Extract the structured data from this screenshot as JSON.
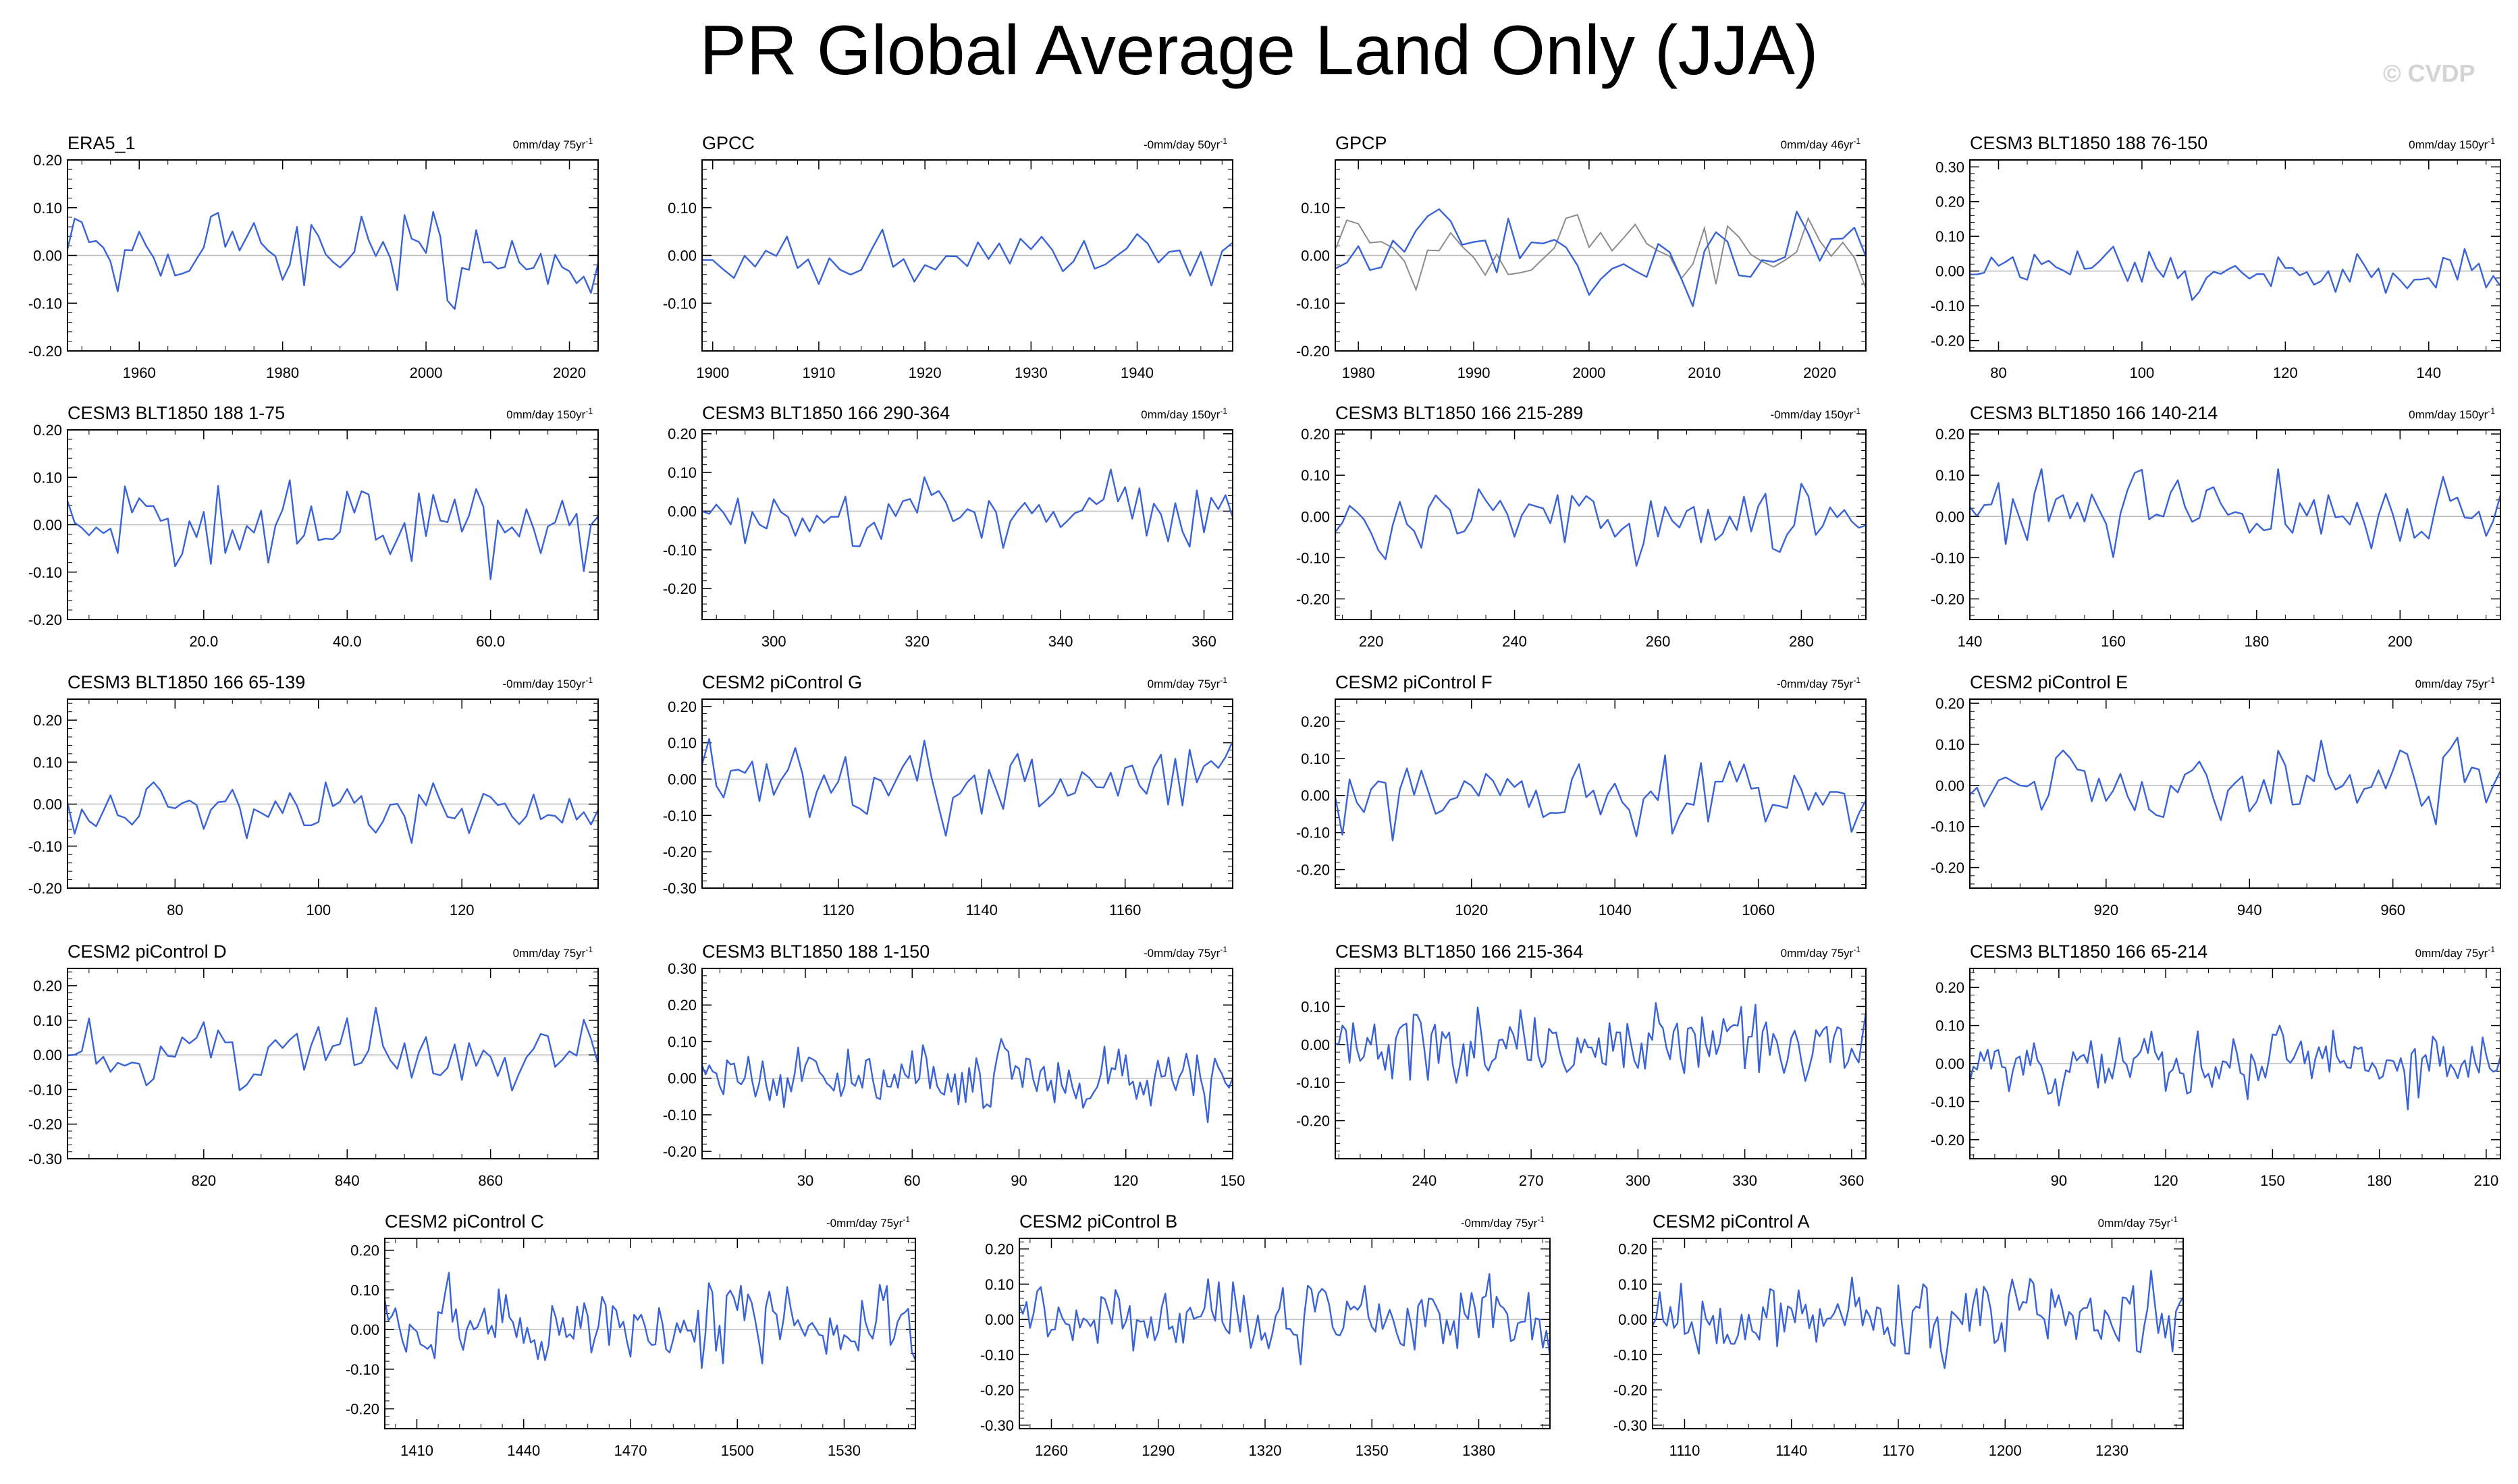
{
  "title": "PR Global Average Land Only (JJA)",
  "watermark": "© CVDP",
  "colors": {
    "series": "#3a63d6",
    "obs_overlay": "#8c8c8c",
    "zero_line": "#bdbdbd",
    "axis": "#000000"
  },
  "chart_data": [
    {
      "type": "line",
      "title": "ERA5_1",
      "trend": "0mm/day 75yr",
      "ylim": [
        -0.2,
        0.2
      ],
      "yticks": [
        -0.2,
        -0.1,
        0,
        0.1,
        0.2
      ],
      "ytick_labels": [
        "-0.20",
        "-0.10",
        "0.00",
        "0.10",
        "0.20"
      ],
      "xlim": [
        1950,
        2024
      ],
      "xticks": [
        1960,
        1980,
        2000,
        2020
      ],
      "xtick_labels": [
        "1960",
        "1980",
        "2000",
        "2020"
      ],
      "seed": 11,
      "amp": 0.075,
      "clip": 0.17
    },
    {
      "type": "line",
      "title": "GPCC",
      "trend": "-0mm/day 50yr",
      "ylim": [
        -0.2,
        0.2
      ],
      "yticks": [
        -0.1,
        0,
        0.1
      ],
      "ytick_labels": [
        "-0.10",
        "0.00",
        "0.10"
      ],
      "xlim": [
        1899,
        1949
      ],
      "xticks": [
        1900,
        1910,
        1920,
        1930,
        1940
      ],
      "xtick_labels": [
        "1900",
        "1910",
        "1920",
        "1930",
        "1940"
      ],
      "seed": 23,
      "amp": 0.05,
      "clip": 0.12
    },
    {
      "type": "line",
      "title": "GPCP",
      "trend": "0mm/day 46yr",
      "ylim": [
        -0.2,
        0.2
      ],
      "yticks": [
        -0.2,
        -0.1,
        0,
        0.1
      ],
      "ytick_labels": [
        "-0.20",
        "-0.10",
        "0.00",
        "0.10"
      ],
      "xlim": [
        1978,
        2024
      ],
      "xticks": [
        1980,
        1990,
        2000,
        2010,
        2020
      ],
      "xtick_labels": [
        "1980",
        "1990",
        "2000",
        "2010",
        "2020"
      ],
      "seed": 37,
      "amp": 0.065,
      "clip": 0.15,
      "overlay_seed": 11
    },
    {
      "type": "line",
      "title": "CESM3 BLT1850 188 76-150",
      "trend": "0mm/day 150yr",
      "ylim": [
        -0.23,
        0.32
      ],
      "yticks": [
        -0.2,
        -0.1,
        0,
        0.1,
        0.2,
        0.3
      ],
      "ytick_labels": [
        "-0.20",
        "-0.10",
        "0.00",
        "0.10",
        "0.20",
        "0.30"
      ],
      "xlim": [
        76,
        150
      ],
      "xticks": [
        80,
        100,
        120,
        140
      ],
      "xtick_labels": [
        "80",
        "100",
        "120",
        "140"
      ],
      "seed": 41,
      "amp": 0.06,
      "clip": 0.2
    },
    {
      "type": "line",
      "title": "CESM3 BLT1850 188 1-75",
      "trend": "0mm/day 150yr",
      "ylim": [
        -0.2,
        0.2
      ],
      "yticks": [
        -0.2,
        -0.1,
        0,
        0.1,
        0.2
      ],
      "ytick_labels": [
        "-0.20",
        "-0.10",
        "0.00",
        "0.10",
        "0.20"
      ],
      "xlim": [
        1,
        75
      ],
      "xticks": [
        20,
        40,
        60
      ],
      "xtick_labels": [
        "20.0",
        "40.0",
        "60.0"
      ],
      "seed": 53,
      "amp": 0.08,
      "clip": 0.18
    },
    {
      "type": "line",
      "title": "CESM3 BLT1850 166 290-364",
      "trend": "0mm/day 150yr",
      "ylim": [
        -0.28,
        0.21
      ],
      "yticks": [
        -0.2,
        -0.1,
        0,
        0.1,
        0.2
      ],
      "ytick_labels": [
        "-0.20",
        "-0.10",
        "0.00",
        "0.10",
        "0.20"
      ],
      "xlim": [
        290,
        364
      ],
      "xticks": [
        300,
        320,
        340,
        360
      ],
      "xtick_labels": [
        "300",
        "320",
        "340",
        "360"
      ],
      "seed": 61,
      "amp": 0.075,
      "clip": 0.25
    },
    {
      "type": "line",
      "title": "CESM3 BLT1850 166 215-289",
      "trend": "-0mm/day 150yr",
      "ylim": [
        -0.25,
        0.21
      ],
      "yticks": [
        -0.2,
        -0.1,
        0,
        0.1,
        0.2
      ],
      "ytick_labels": [
        "-0.20",
        "-0.10",
        "0.00",
        "0.10",
        "0.20"
      ],
      "xlim": [
        215,
        289
      ],
      "xticks": [
        220,
        240,
        260,
        280
      ],
      "xtick_labels": [
        "220",
        "240",
        "260",
        "280"
      ],
      "seed": 71,
      "amp": 0.075,
      "clip": 0.23
    },
    {
      "type": "line",
      "title": "CESM3 BLT1850 166 140-214",
      "trend": "0mm/day 150yr",
      "ylim": [
        -0.25,
        0.21
      ],
      "yticks": [
        -0.2,
        -0.1,
        0,
        0.1,
        0.2
      ],
      "ytick_labels": [
        "-0.20",
        "-0.10",
        "0.00",
        "0.10",
        "0.20"
      ],
      "xlim": [
        140,
        214
      ],
      "xticks": [
        140,
        160,
        180,
        200
      ],
      "xtick_labels": [
        "140",
        "160",
        "180",
        "200"
      ],
      "seed": 83,
      "amp": 0.08,
      "clip": 0.2
    },
    {
      "type": "line",
      "title": "CESM3 BLT1850 166 65-139",
      "trend": "-0mm/day 150yr",
      "ylim": [
        -0.2,
        0.25
      ],
      "yticks": [
        -0.2,
        -0.1,
        0,
        0.1,
        0.2
      ],
      "ytick_labels": [
        "-0.20",
        "-0.10",
        "0.00",
        "0.10",
        "0.20"
      ],
      "xlim": [
        65,
        139
      ],
      "xticks": [
        80,
        100,
        120
      ],
      "xtick_labels": [
        "80",
        "100",
        "120"
      ],
      "seed": 97,
      "amp": 0.06,
      "clip": 0.2
    },
    {
      "type": "line",
      "title": "CESM2 piControl G",
      "trend": "0mm/day 75yr",
      "ylim": [
        -0.3,
        0.22
      ],
      "yticks": [
        -0.3,
        -0.2,
        -0.1,
        0,
        0.1,
        0.2
      ],
      "ytick_labels": [
        "-0.30",
        "-0.20",
        "-0.10",
        "0.00",
        "0.10",
        "0.20"
      ],
      "xlim": [
        1101,
        1175
      ],
      "xticks": [
        1120,
        1140,
        1160
      ],
      "xtick_labels": [
        "1120",
        "1140",
        "1160"
      ],
      "seed": 103,
      "amp": 0.09,
      "clip": 0.26
    },
    {
      "type": "line",
      "title": "CESM2 piControl F",
      "trend": "-0mm/day 75yr",
      "ylim": [
        -0.25,
        0.26
      ],
      "yticks": [
        -0.2,
        -0.1,
        0,
        0.1,
        0.2
      ],
      "ytick_labels": [
        "-0.20",
        "-0.10",
        "0.00",
        "0.10",
        "0.20"
      ],
      "xlim": [
        1001,
        1075
      ],
      "xticks": [
        1020,
        1040,
        1060
      ],
      "xtick_labels": [
        "1020",
        "1040",
        "1060"
      ],
      "seed": 113,
      "amp": 0.09,
      "clip": 0.22
    },
    {
      "type": "line",
      "title": "CESM2 piControl E",
      "trend": "0mm/day 75yr",
      "ylim": [
        -0.25,
        0.21
      ],
      "yticks": [
        -0.2,
        -0.1,
        0,
        0.1,
        0.2
      ],
      "ytick_labels": [
        "-0.20",
        "-0.10",
        "0.00",
        "0.10",
        "0.20"
      ],
      "xlim": [
        901,
        975
      ],
      "xticks": [
        920,
        940,
        960
      ],
      "xtick_labels": [
        "920",
        "940",
        "960"
      ],
      "seed": 127,
      "amp": 0.08,
      "clip": 0.21
    },
    {
      "type": "line",
      "title": "CESM2 piControl D",
      "trend": "0mm/day 75yr",
      "ylim": [
        -0.3,
        0.25
      ],
      "yticks": [
        -0.3,
        -0.2,
        -0.1,
        0,
        0.1,
        0.2
      ],
      "ytick_labels": [
        "-0.30",
        "-0.20",
        "-0.10",
        "0.00",
        "0.10",
        "0.20"
      ],
      "xlim": [
        801,
        875
      ],
      "xticks": [
        820,
        840,
        860
      ],
      "xtick_labels": [
        "820",
        "840",
        "860"
      ],
      "seed": 131,
      "amp": 0.09,
      "clip": 0.25
    },
    {
      "type": "line",
      "title": "CESM3 BLT1850 188 1-150",
      "trend": "-0mm/day 75yr",
      "ylim": [
        -0.22,
        0.3
      ],
      "yticks": [
        -0.2,
        -0.1,
        0,
        0.1,
        0.2,
        0.3
      ],
      "ytick_labels": [
        "-0.20",
        "-0.10",
        "0.00",
        "0.10",
        "0.20",
        "0.30"
      ],
      "xlim": [
        1,
        150
      ],
      "xticks": [
        30,
        60,
        90,
        120,
        150
      ],
      "xtick_labels": [
        "30",
        "60",
        "90",
        "120",
        "150"
      ],
      "seed": 139,
      "amp": 0.07,
      "clip": 0.2
    },
    {
      "type": "line",
      "title": "CESM3 BLT1850 166 215-364",
      "trend": "0mm/day 75yr",
      "ylim": [
        -0.3,
        0.2
      ],
      "yticks": [
        -0.2,
        -0.1,
        0,
        0.1
      ],
      "ytick_labels": [
        "-0.20",
        "-0.10",
        "0.00",
        "0.10"
      ],
      "xlim": [
        215,
        364
      ],
      "xticks": [
        240,
        270,
        300,
        330,
        360
      ],
      "xtick_labels": [
        "240",
        "270",
        "300",
        "330",
        "360"
      ],
      "seed": 149,
      "amp": 0.08,
      "clip": 0.25
    },
    {
      "type": "line",
      "title": "CESM3 BLT1850 166 65-214",
      "trend": "0mm/day 75yr",
      "ylim": [
        -0.25,
        0.25
      ],
      "yticks": [
        -0.2,
        -0.1,
        0,
        0.1,
        0.2
      ],
      "ytick_labels": [
        "-0.20",
        "-0.10",
        "0.00",
        "0.10",
        "0.20"
      ],
      "xlim": [
        65,
        214
      ],
      "xticks": [
        90,
        120,
        150,
        180,
        210
      ],
      "xtick_labels": [
        "90",
        "120",
        "150",
        "180",
        "210"
      ],
      "seed": 157,
      "amp": 0.075,
      "clip": 0.21
    },
    {
      "type": "line",
      "title": "CESM2 piControl C",
      "trend": "-0mm/day 75yr",
      "ylim": [
        -0.25,
        0.23
      ],
      "yticks": [
        -0.2,
        -0.1,
        0,
        0.1,
        0.2
      ],
      "ytick_labels": [
        "-0.20",
        "-0.10",
        "0.00",
        "0.10",
        "0.20"
      ],
      "xlim": [
        1401,
        1550
      ],
      "xticks": [
        1410,
        1440,
        1470,
        1500,
        1530
      ],
      "xtick_labels": [
        "1410",
        "1440",
        "1470",
        "1500",
        "1530"
      ],
      "seed": 163,
      "amp": 0.08,
      "clip": 0.22
    },
    {
      "type": "line",
      "title": "CESM2 piControl B",
      "trend": "-0mm/day 75yr",
      "ylim": [
        -0.31,
        0.23
      ],
      "yticks": [
        -0.3,
        -0.2,
        -0.1,
        0,
        0.1,
        0.2
      ],
      "ytick_labels": [
        "-0.30",
        "-0.20",
        "-0.10",
        "0.00",
        "0.10",
        "0.20"
      ],
      "xlim": [
        1251,
        1400
      ],
      "xticks": [
        1260,
        1290,
        1320,
        1350,
        1380
      ],
      "xtick_labels": [
        "1260",
        "1290",
        "1320",
        "1350",
        "1380"
      ],
      "seed": 173,
      "amp": 0.09,
      "clip": 0.27
    },
    {
      "type": "line",
      "title": "CESM2 piControl A",
      "trend": "0mm/day 75yr",
      "ylim": [
        -0.31,
        0.23
      ],
      "yticks": [
        -0.3,
        -0.2,
        -0.1,
        0,
        0.1,
        0.2
      ],
      "ytick_labels": [
        "-0.30",
        "-0.20",
        "-0.10",
        "0.00",
        "0.10",
        "0.20"
      ],
      "xlim": [
        1101,
        1250
      ],
      "xticks": [
        1110,
        1140,
        1170,
        1200,
        1230
      ],
      "xtick_labels": [
        "1110",
        "1140",
        "1170",
        "1200",
        "1230"
      ],
      "seed": 181,
      "amp": 0.09,
      "clip": 0.26
    }
  ]
}
